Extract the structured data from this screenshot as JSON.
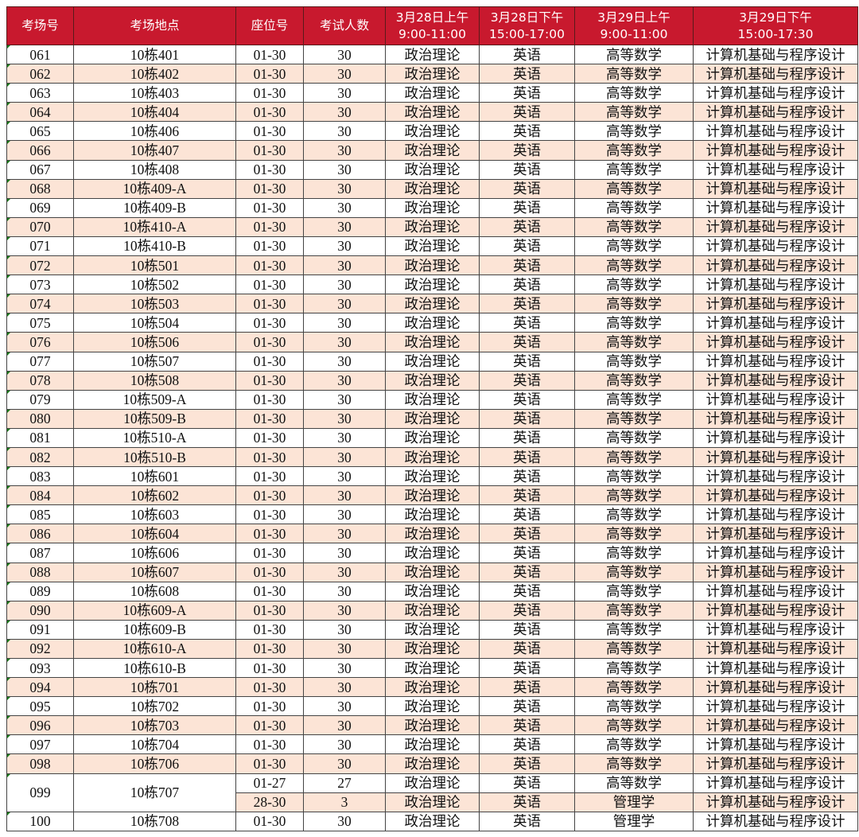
{
  "header": {
    "columns": [
      "考场号",
      "考场地点",
      "座位号",
      "考试人数",
      "3月28日上午",
      "3月28日下午",
      "3月29日上午",
      "3月29日下午"
    ],
    "times": [
      "",
      "",
      "",
      "",
      "9:00-11:00",
      "15:00-17:00",
      "9:00-11:00",
      "15:00-17:30"
    ]
  },
  "colors": {
    "header_bg": "#c8192e",
    "stripe": "#fce4d6"
  },
  "rows": [
    [
      "061",
      "10栋401",
      "01-30",
      "30",
      "政治理论",
      "英语",
      "高等数学",
      "计算机基础与程序设计"
    ],
    [
      "062",
      "10栋402",
      "01-30",
      "30",
      "政治理论",
      "英语",
      "高等数学",
      "计算机基础与程序设计"
    ],
    [
      "063",
      "10栋403",
      "01-30",
      "30",
      "政治理论",
      "英语",
      "高等数学",
      "计算机基础与程序设计"
    ],
    [
      "064",
      "10栋404",
      "01-30",
      "30",
      "政治理论",
      "英语",
      "高等数学",
      "计算机基础与程序设计"
    ],
    [
      "065",
      "10栋406",
      "01-30",
      "30",
      "政治理论",
      "英语",
      "高等数学",
      "计算机基础与程序设计"
    ],
    [
      "066",
      "10栋407",
      "01-30",
      "30",
      "政治理论",
      "英语",
      "高等数学",
      "计算机基础与程序设计"
    ],
    [
      "067",
      "10栋408",
      "01-30",
      "30",
      "政治理论",
      "英语",
      "高等数学",
      "计算机基础与程序设计"
    ],
    [
      "068",
      "10栋409-A",
      "01-30",
      "30",
      "政治理论",
      "英语",
      "高等数学",
      "计算机基础与程序设计"
    ],
    [
      "069",
      "10栋409-B",
      "01-30",
      "30",
      "政治理论",
      "英语",
      "高等数学",
      "计算机基础与程序设计"
    ],
    [
      "070",
      "10栋410-A",
      "01-30",
      "30",
      "政治理论",
      "英语",
      "高等数学",
      "计算机基础与程序设计"
    ],
    [
      "071",
      "10栋410-B",
      "01-30",
      "30",
      "政治理论",
      "英语",
      "高等数学",
      "计算机基础与程序设计"
    ],
    [
      "072",
      "10栋501",
      "01-30",
      "30",
      "政治理论",
      "英语",
      "高等数学",
      "计算机基础与程序设计"
    ],
    [
      "073",
      "10栋502",
      "01-30",
      "30",
      "政治理论",
      "英语",
      "高等数学",
      "计算机基础与程序设计"
    ],
    [
      "074",
      "10栋503",
      "01-30",
      "30",
      "政治理论",
      "英语",
      "高等数学",
      "计算机基础与程序设计"
    ],
    [
      "075",
      "10栋504",
      "01-30",
      "30",
      "政治理论",
      "英语",
      "高等数学",
      "计算机基础与程序设计"
    ],
    [
      "076",
      "10栋506",
      "01-30",
      "30",
      "政治理论",
      "英语",
      "高等数学",
      "计算机基础与程序设计"
    ],
    [
      "077",
      "10栋507",
      "01-30",
      "30",
      "政治理论",
      "英语",
      "高等数学",
      "计算机基础与程序设计"
    ],
    [
      "078",
      "10栋508",
      "01-30",
      "30",
      "政治理论",
      "英语",
      "高等数学",
      "计算机基础与程序设计"
    ],
    [
      "079",
      "10栋509-A",
      "01-30",
      "30",
      "政治理论",
      "英语",
      "高等数学",
      "计算机基础与程序设计"
    ],
    [
      "080",
      "10栋509-B",
      "01-30",
      "30",
      "政治理论",
      "英语",
      "高等数学",
      "计算机基础与程序设计"
    ],
    [
      "081",
      "10栋510-A",
      "01-30",
      "30",
      "政治理论",
      "英语",
      "高等数学",
      "计算机基础与程序设计"
    ],
    [
      "082",
      "10栋510-B",
      "01-30",
      "30",
      "政治理论",
      "英语",
      "高等数学",
      "计算机基础与程序设计"
    ],
    [
      "083",
      "10栋601",
      "01-30",
      "30",
      "政治理论",
      "英语",
      "高等数学",
      "计算机基础与程序设计"
    ],
    [
      "084",
      "10栋602",
      "01-30",
      "30",
      "政治理论",
      "英语",
      "高等数学",
      "计算机基础与程序设计"
    ],
    [
      "085",
      "10栋603",
      "01-30",
      "30",
      "政治理论",
      "英语",
      "高等数学",
      "计算机基础与程序设计"
    ],
    [
      "086",
      "10栋604",
      "01-30",
      "30",
      "政治理论",
      "英语",
      "高等数学",
      "计算机基础与程序设计"
    ],
    [
      "087",
      "10栋606",
      "01-30",
      "30",
      "政治理论",
      "英语",
      "高等数学",
      "计算机基础与程序设计"
    ],
    [
      "088",
      "10栋607",
      "01-30",
      "30",
      "政治理论",
      "英语",
      "高等数学",
      "计算机基础与程序设计"
    ],
    [
      "089",
      "10栋608",
      "01-30",
      "30",
      "政治理论",
      "英语",
      "高等数学",
      "计算机基础与程序设计"
    ],
    [
      "090",
      "10栋609-A",
      "01-30",
      "30",
      "政治理论",
      "英语",
      "高等数学",
      "计算机基础与程序设计"
    ],
    [
      "091",
      "10栋609-B",
      "01-30",
      "30",
      "政治理论",
      "英语",
      "高等数学",
      "计算机基础与程序设计"
    ],
    [
      "092",
      "10栋610-A",
      "01-30",
      "30",
      "政治理论",
      "英语",
      "高等数学",
      "计算机基础与程序设计"
    ],
    [
      "093",
      "10栋610-B",
      "01-30",
      "30",
      "政治理论",
      "英语",
      "高等数学",
      "计算机基础与程序设计"
    ],
    [
      "094",
      "10栋701",
      "01-30",
      "30",
      "政治理论",
      "英语",
      "高等数学",
      "计算机基础与程序设计"
    ],
    [
      "095",
      "10栋702",
      "01-30",
      "30",
      "政治理论",
      "英语",
      "高等数学",
      "计算机基础与程序设计"
    ],
    [
      "096",
      "10栋703",
      "01-30",
      "30",
      "政治理论",
      "英语",
      "高等数学",
      "计算机基础与程序设计"
    ],
    [
      "097",
      "10栋704",
      "01-30",
      "30",
      "政治理论",
      "英语",
      "高等数学",
      "计算机基础与程序设计"
    ],
    [
      "098",
      "10栋706",
      "01-30",
      "30",
      "政治理论",
      "英语",
      "高等数学",
      "计算机基础与程序设计"
    ],
    [
      "099",
      "10栋707",
      "01-27",
      "27",
      "政治理论",
      "英语",
      "高等数学",
      "计算机基础与程序设计"
    ],
    [
      "",
      "",
      "28-30",
      "3",
      "政治理论",
      "英语",
      "管理学",
      "计算机基础与程序设计"
    ],
    [
      "100",
      "10栋708",
      "01-30",
      "30",
      "政治理论",
      "英语",
      "管理学",
      "计算机基础与程序设计"
    ]
  ]
}
